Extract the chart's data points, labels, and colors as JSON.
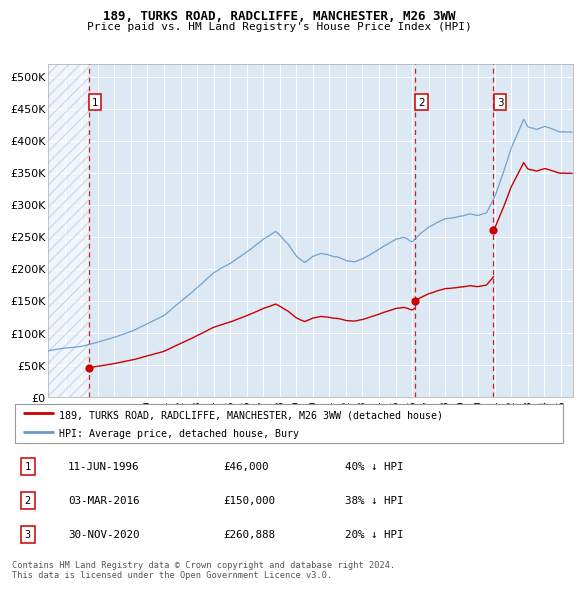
{
  "title1": "189, TURKS ROAD, RADCLIFFE, MANCHESTER, M26 3WW",
  "title2": "Price paid vs. HM Land Registry's House Price Index (HPI)",
  "xlim_start": 1994.0,
  "xlim_end": 2025.75,
  "ylim_min": 0,
  "ylim_max": 520000,
  "yticks": [
    0,
    50000,
    100000,
    150000,
    200000,
    250000,
    300000,
    350000,
    400000,
    450000,
    500000
  ],
  "ytick_labels": [
    "£0",
    "£50K",
    "£100K",
    "£150K",
    "£200K",
    "£250K",
    "£300K",
    "£350K",
    "£400K",
    "£450K",
    "£500K"
  ],
  "xticks": [
    1994,
    1995,
    1996,
    1997,
    1998,
    1999,
    2000,
    2001,
    2002,
    2003,
    2004,
    2005,
    2006,
    2007,
    2008,
    2009,
    2010,
    2011,
    2012,
    2013,
    2014,
    2015,
    2016,
    2017,
    2018,
    2019,
    2020,
    2021,
    2022,
    2023,
    2024,
    2025
  ],
  "t1": 1996.44,
  "p1": 46000,
  "t2": 2016.17,
  "p2": 150000,
  "t3": 2020.92,
  "p3": 260888,
  "legend_red": "189, TURKS ROAD, RADCLIFFE, MANCHESTER, M26 3WW (detached house)",
  "legend_blue": "HPI: Average price, detached house, Bury",
  "table_rows": [
    {
      "num": "1",
      "date": "11-JUN-1996",
      "price": "£46,000",
      "hpi": "40% ↓ HPI"
    },
    {
      "num": "2",
      "date": "03-MAR-2016",
      "price": "£150,000",
      "hpi": "38% ↓ HPI"
    },
    {
      "num": "3",
      "date": "30-NOV-2020",
      "price": "£260,888",
      "hpi": "20% ↓ HPI"
    }
  ],
  "footnote1": "Contains HM Land Registry data © Crown copyright and database right 2024.",
  "footnote2": "This data is licensed under the Open Government Licence v3.0.",
  "plot_bg": "#dce9f5",
  "hatch_color": "#b0c8de",
  "red_color": "#cc0000",
  "blue_color": "#6699cc",
  "grid_color": "#ffffff",
  "label_positions": [
    {
      "t": 1996.44,
      "label": "1"
    },
    {
      "t": 2016.17,
      "label": "2"
    },
    {
      "t": 2020.92,
      "label": "3"
    }
  ]
}
